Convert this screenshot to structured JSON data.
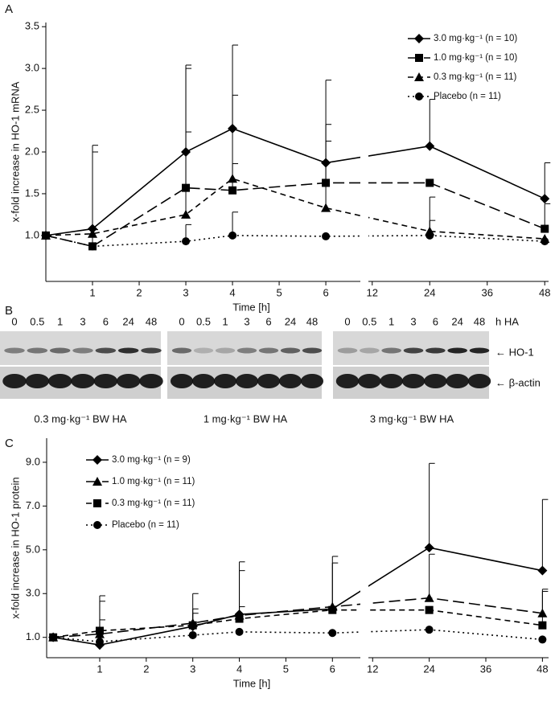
{
  "chart_data": [
    {
      "type": "line",
      "panel_label": "A",
      "y_label": "x-fold increase in HO-1 mRNA",
      "x_label": "Time [h]",
      "x": [
        0,
        1,
        3,
        4,
        6,
        24,
        48
      ],
      "x_segments": [
        {
          "xlim": [
            0,
            6.74
          ],
          "xticks": [
            1,
            2,
            3,
            4,
            5,
            6
          ]
        },
        {
          "xlim": [
            11.2,
            48.8
          ],
          "xticks": [
            12,
            24,
            36,
            48
          ]
        }
      ],
      "ylim": [
        0.45,
        3.55
      ],
      "yticks": [
        {
          "value": 1,
          "label": "1.0"
        },
        1.5,
        {
          "value": 2,
          "label": "2.0"
        },
        2.5,
        {
          "value": 3,
          "label": "3.0"
        },
        3.5
      ],
      "legend": "upper right",
      "series": [
        {
          "name": "3.0 mg·kg⁻¹ (n = 10)",
          "color": "#000000",
          "marker": "diamond",
          "dash": "solid",
          "values": [
            1.0,
            1.08,
            2.0,
            2.28,
            1.87,
            2.07,
            1.44
          ],
          "errors": [
            null,
            1.0,
            1.0,
            1.0,
            0.99,
            0.56,
            0.43
          ]
        },
        {
          "name": "1.0 mg·kg⁻¹ (n = 10)",
          "color": "#000000",
          "marker": "square",
          "dash": "long",
          "values": [
            1.0,
            0.87,
            1.57,
            1.54,
            1.63,
            1.63,
            1.08
          ],
          "errors": [
            null,
            0.2,
            1.47,
            1.14,
            0.7,
            null,
            0.3
          ]
        },
        {
          "name": "0.3 mg·kg⁻¹ (n = 11)",
          "color": "#000000",
          "marker": "triangle",
          "dash": "short",
          "values": [
            1.0,
            1.02,
            1.25,
            1.68,
            1.33,
            1.05,
            0.96
          ],
          "errors": [
            null,
            0.98,
            0.99,
            0.18,
            0.8,
            0.41,
            null
          ]
        },
        {
          "name": "Placebo (n = 11)",
          "color": "#000000",
          "marker": "circle",
          "dash": "dotted",
          "values": [
            1.0,
            0.87,
            0.93,
            1.0,
            0.99,
            1.0,
            0.93
          ],
          "errors": [
            null,
            0.2,
            0.2,
            0.28,
            null,
            0.18,
            null
          ]
        }
      ]
    },
    {
      "type": "line",
      "panel_label": "C",
      "y_label": "x-fold increase in HO-1 protein",
      "x_label": "Time [h]",
      "x": [
        0,
        1,
        3,
        4,
        6,
        24,
        48
      ],
      "x_segments": [
        {
          "xlim": [
            -0.14,
            6.6
          ],
          "xticks": [
            1,
            2,
            3,
            4,
            5,
            6
          ]
        },
        {
          "xlim": [
            11.1,
            49.3
          ],
          "xticks": [
            12,
            24,
            36,
            48
          ]
        }
      ],
      "ylim": [
        0.07,
        10.1
      ],
      "yticks": [
        {
          "value": 1,
          "label": "1.0"
        },
        {
          "value": 3,
          "label": "3.0"
        },
        {
          "value": 5,
          "label": "5.0"
        },
        {
          "value": 7,
          "label": "7.0"
        },
        {
          "value": 9,
          "label": "9.0"
        }
      ],
      "legend": "upper left",
      "series": [
        {
          "name": "3.0 mg·kg⁻¹ (n = 9)",
          "color": "#000000",
          "marker": "diamond",
          "dash": "solid",
          "values": [
            1.0,
            0.65,
            1.5,
            2.05,
            2.3,
            5.1,
            4.05
          ],
          "errors": [
            null,
            2.25,
            1.5,
            2.4,
            2.4,
            3.85,
            3.25
          ]
        },
        {
          "name": "1.0 mg·kg⁻¹ (n = 11)",
          "color": "#000000",
          "marker": "triangle",
          "dash": "long",
          "values": [
            1.0,
            1.15,
            1.65,
            2.0,
            2.4,
            2.8,
            2.1
          ],
          "errors": [
            null,
            1.5,
            0.65,
            2.05,
            2.0,
            2.0,
            1.1
          ]
        },
        {
          "name": "0.3 mg·kg⁻¹ (n = 11)",
          "color": "#000000",
          "marker": "square",
          "dash": "short",
          "values": [
            1.0,
            1.3,
            1.55,
            1.85,
            2.25,
            2.25,
            1.55
          ],
          "errors": [
            null,
            0.5,
            0.55,
            0.55,
            null,
            null,
            1.55
          ]
        },
        {
          "name": "Placebo (n = 11)",
          "color": "#000000",
          "marker": "circle",
          "dash": "dotted",
          "values": [
            1.0,
            0.8,
            1.1,
            1.25,
            1.2,
            1.35,
            0.9
          ],
          "errors": [
            null,
            null,
            null,
            null,
            null,
            null,
            null
          ]
        }
      ]
    }
  ],
  "blot": {
    "panel_label": "B",
    "times": [
      "0",
      "0.5",
      "1",
      "3",
      "6",
      "24",
      "48"
    ],
    "unit": "h HA",
    "bands": [
      "← HO-1",
      "← β-actin"
    ],
    "captions": [
      "0.3 mg·kg⁻¹ BW HA",
      "1 mg·kg⁻¹ BW HA",
      "3 mg·kg⁻¹ BW HA"
    ]
  }
}
